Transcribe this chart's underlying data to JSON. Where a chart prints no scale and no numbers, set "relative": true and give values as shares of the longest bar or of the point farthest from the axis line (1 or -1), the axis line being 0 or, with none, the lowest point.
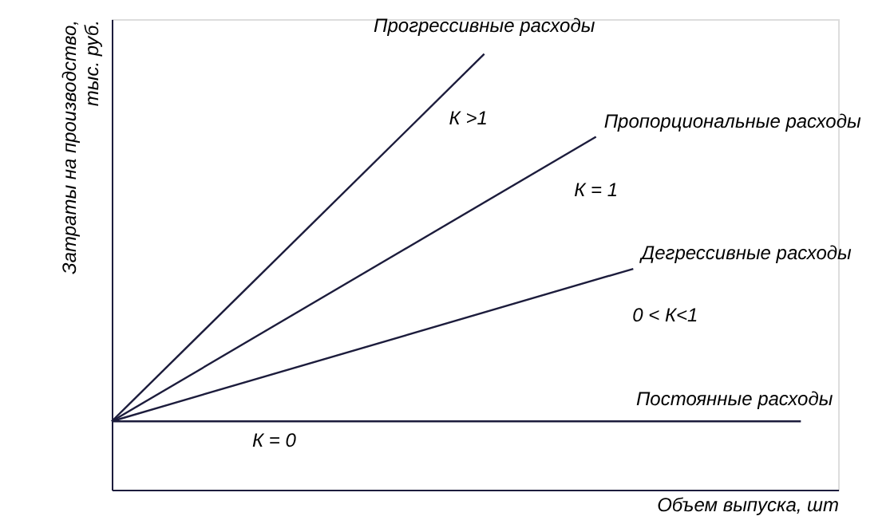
{
  "chart_data": {
    "type": "line",
    "relative": true,
    "xlabel": "Объем выпуска, шт",
    "ylabel": "Затраты на производство, тыс. руб.",
    "grid": false,
    "categories": [
      null,
      null,
      null,
      null,
      null,
      null,
      null,
      null,
      null,
      null,
      null,
      null,
      null,
      null,
      null,
      null,
      null,
      null,
      null,
      null,
      null,
      null,
      null,
      null,
      null,
      null,
      null,
      null,
      null,
      null,
      null,
      null,
      null,
      null,
      null,
      null,
      null,
      null,
      null,
      null
    ],
    "series": [
      {
        "name": "Прогрессивные расходы",
        "color": "#1c1c3c",
        "values": [
          0.157,
          null,
          null,
          null,
          null,
          null,
          null,
          null,
          null,
          null,
          null,
          null,
          null,
          null,
          null,
          null,
          null,
          null,
          null,
          null,
          1,
          null,
          null,
          null,
          null,
          null,
          null,
          null,
          null,
          null,
          null,
          null,
          null,
          null,
          null,
          null,
          null,
          null,
          null,
          null
        ]
      },
      {
        "name": "Пропорциональные расходы",
        "color": "#1c1c3c",
        "values": [
          0.157,
          null,
          null,
          null,
          null,
          null,
          null,
          null,
          null,
          null,
          null,
          null,
          null,
          null,
          null,
          null,
          null,
          null,
          null,
          null,
          null,
          null,
          null,
          null,
          null,
          null,
          0.81,
          null,
          null,
          null,
          null,
          null,
          null,
          null,
          null,
          null,
          null,
          null,
          null,
          null
        ]
      },
      {
        "name": "Дегрессивные расходы",
        "color": "#1c1c3c",
        "values": [
          0.157,
          null,
          null,
          null,
          null,
          null,
          null,
          null,
          null,
          null,
          null,
          null,
          null,
          null,
          null,
          null,
          null,
          null,
          null,
          null,
          null,
          null,
          null,
          null,
          null,
          null,
          null,
          null,
          0.507,
          null,
          null,
          null,
          null,
          null,
          null,
          null,
          null,
          null,
          null,
          null
        ]
      },
      {
        "name": "Постоянные расходы",
        "color": "#1c1c3c",
        "values": [
          0.157,
          null,
          null,
          null,
          null,
          null,
          null,
          null,
          null,
          null,
          null,
          null,
          null,
          null,
          null,
          null,
          null,
          null,
          null,
          null,
          null,
          null,
          null,
          null,
          null,
          null,
          null,
          null,
          null,
          null,
          null,
          null,
          null,
          null,
          null,
          null,
          null,
          0.157,
          null,
          null
        ]
      }
    ],
    "annotations": [
      "К >1",
      "К = 1",
      "0 < К<1",
      "К = 0"
    ]
  }
}
